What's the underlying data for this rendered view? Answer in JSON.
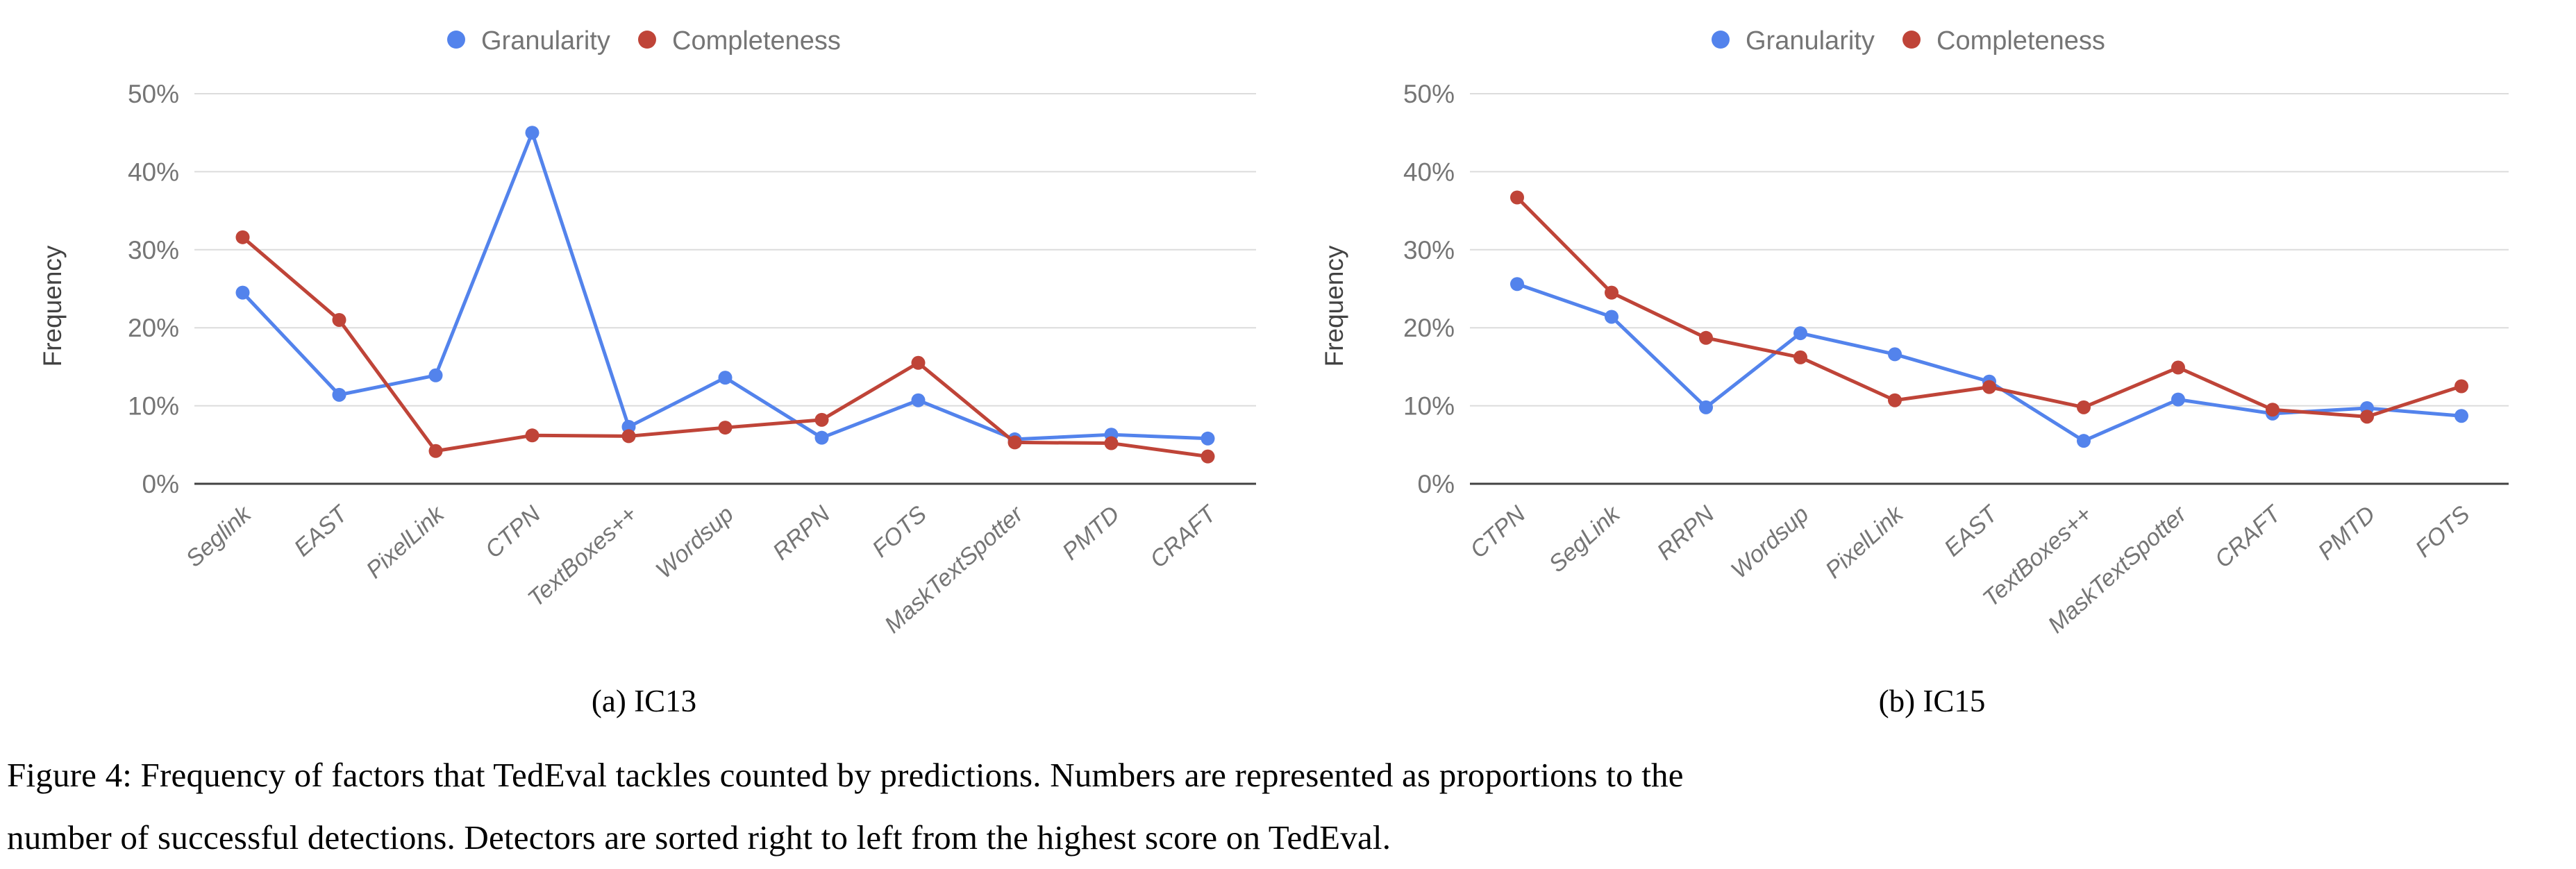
{
  "page": {
    "background": "#ffffff"
  },
  "captions": {
    "sub_a": "(a) IC13",
    "sub_b": "(b) IC15",
    "figure_line1": "Figure 4: Frequency of factors that TedEval tackles counted by predictions. Numbers are represented as proportions to the",
    "figure_line2": "number of successful detections. Detectors are sorted right to left from the highest score on TedEval."
  },
  "colors": {
    "granularity": "#5383EC",
    "completeness": "#BF4438",
    "grid": "#DCDCDC",
    "axis": "#424242",
    "tick_label": "#757575",
    "x_label": "#757575",
    "axis_title": "#424242",
    "legend_text": "#757575"
  },
  "chart_data": [
    {
      "type": "line",
      "title": "(a) IC13",
      "ylabel": "Frequency",
      "ylim": [
        0,
        50
      ],
      "grid": true,
      "legend_position": "top",
      "ytick_values": [
        0,
        10,
        20,
        30,
        40,
        50
      ],
      "yticks": [
        "0%",
        "10%",
        "20%",
        "30%",
        "40%",
        "50%"
      ],
      "categories": [
        "Seglink",
        "EAST",
        "PixelLink",
        "CTPN",
        "TextBoxes++",
        "Wordsup",
        "RRPN",
        "FOTS",
        "MaskTextSpotter",
        "PMTD",
        "CRAFT"
      ],
      "series": [
        {
          "name": "Granularity",
          "color_key": "granularity",
          "values": [
            24.5,
            11.4,
            13.9,
            45.0,
            7.3,
            13.6,
            5.9,
            10.7,
            5.7,
            6.3,
            5.8
          ]
        },
        {
          "name": "Completeness",
          "color_key": "completeness",
          "values": [
            31.6,
            21.0,
            4.2,
            6.2,
            6.1,
            7.2,
            8.2,
            15.5,
            5.3,
            5.2,
            3.5
          ]
        }
      ]
    },
    {
      "type": "line",
      "title": "(b) IC15",
      "ylabel": "Frequency",
      "ylim": [
        0,
        50
      ],
      "grid": true,
      "legend_position": "top",
      "ytick_values": [
        0,
        10,
        20,
        30,
        40,
        50
      ],
      "yticks": [
        "0%",
        "10%",
        "20%",
        "30%",
        "40%",
        "50%"
      ],
      "categories": [
        "CTPN",
        "SegLink",
        "RRPN",
        "Wordsup",
        "PixelLink",
        "EAST",
        "TextBoxes++",
        "MaskTextSpotter",
        "CRAFT",
        "PMTD",
        "FOTS"
      ],
      "series": [
        {
          "name": "Granularity",
          "color_key": "granularity",
          "values": [
            25.6,
            21.4,
            9.8,
            19.3,
            16.6,
            13.1,
            5.5,
            10.8,
            9.0,
            9.7,
            8.7
          ]
        },
        {
          "name": "Completeness",
          "color_key": "completeness",
          "values": [
            36.7,
            24.5,
            18.7,
            16.2,
            10.7,
            12.4,
            9.8,
            14.9,
            9.5,
            8.6,
            12.5
          ]
        }
      ]
    }
  ]
}
